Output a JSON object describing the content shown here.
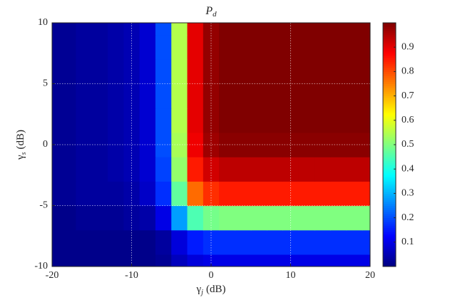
{
  "chart_data": {
    "type": "contourf",
    "title": {
      "base": "P",
      "sub": "d"
    },
    "xlabel": {
      "symbol": "γ",
      "sub": "j",
      "unit": "(dB)"
    },
    "ylabel": {
      "symbol": "γ",
      "sub": "s",
      "unit": "(dB)"
    },
    "x": [
      -20,
      -18,
      -16,
      -14,
      -12,
      -10,
      -8,
      -6,
      -4,
      -2,
      0,
      2,
      4,
      6,
      8,
      10,
      12,
      14,
      16,
      18,
      20
    ],
    "y": [
      -10,
      -8,
      -6,
      -4,
      -2,
      0,
      2,
      4,
      6,
      8,
      10
    ],
    "z": [
      [
        0.01,
        0.01,
        0.01,
        0.01,
        0.01,
        0.01,
        0.01,
        0.02,
        0.06,
        0.09,
        0.1,
        0.1,
        0.1,
        0.1,
        0.1,
        0.1,
        0.1,
        0.1,
        0.1,
        0.1,
        0.1
      ],
      [
        0.01,
        0.01,
        0.01,
        0.01,
        0.01,
        0.01,
        0.01,
        0.03,
        0.09,
        0.15,
        0.17,
        0.17,
        0.17,
        0.17,
        0.17,
        0.17,
        0.17,
        0.17,
        0.17,
        0.17,
        0.17
      ],
      [
        0.01,
        0.01,
        0.02,
        0.02,
        0.02,
        0.03,
        0.04,
        0.1,
        0.28,
        0.45,
        0.49,
        0.5,
        0.5,
        0.5,
        0.5,
        0.5,
        0.5,
        0.5,
        0.5,
        0.5,
        0.5
      ],
      [
        0.02,
        0.02,
        0.03,
        0.03,
        0.03,
        0.04,
        0.07,
        0.17,
        0.47,
        0.77,
        0.83,
        0.85,
        0.85,
        0.85,
        0.85,
        0.85,
        0.85,
        0.85,
        0.85,
        0.85,
        0.85
      ],
      [
        0.02,
        0.02,
        0.03,
        0.03,
        0.04,
        0.05,
        0.08,
        0.19,
        0.52,
        0.85,
        0.92,
        0.94,
        0.94,
        0.94,
        0.94,
        0.94,
        0.94,
        0.94,
        0.94,
        0.94,
        0.94
      ],
      [
        0.02,
        0.02,
        0.03,
        0.03,
        0.04,
        0.05,
        0.08,
        0.2,
        0.54,
        0.89,
        0.97,
        0.99,
        0.99,
        0.99,
        0.99,
        0.99,
        0.99,
        0.99,
        0.99,
        0.99,
        0.99
      ],
      [
        0.02,
        0.02,
        0.03,
        0.03,
        0.04,
        0.05,
        0.08,
        0.2,
        0.55,
        0.9,
        0.98,
        1,
        1,
        1,
        1,
        1,
        1,
        1,
        1,
        1,
        1
      ],
      [
        0.02,
        0.02,
        0.03,
        0.03,
        0.04,
        0.05,
        0.08,
        0.2,
        0.55,
        0.9,
        0.98,
        1,
        1,
        1,
        1,
        1,
        1,
        1,
        1,
        1,
        1
      ],
      [
        0.02,
        0.02,
        0.03,
        0.03,
        0.04,
        0.05,
        0.08,
        0.2,
        0.55,
        0.9,
        0.98,
        1,
        1,
        1,
        1,
        1,
        1,
        1,
        1,
        1,
        1
      ],
      [
        0.02,
        0.02,
        0.03,
        0.03,
        0.04,
        0.05,
        0.08,
        0.2,
        0.55,
        0.9,
        0.98,
        1,
        1,
        1,
        1,
        1,
        1,
        1,
        1,
        1,
        1
      ],
      [
        0.02,
        0.02,
        0.03,
        0.03,
        0.04,
        0.05,
        0.08,
        0.2,
        0.55,
        0.9,
        0.98,
        1,
        1,
        1,
        1,
        1,
        1,
        1,
        1,
        1,
        1
      ]
    ],
    "xlim": [
      -20,
      20
    ],
    "ylim": [
      -10,
      10
    ],
    "xticks": [
      -20,
      -10,
      0,
      10,
      20
    ],
    "yticks": [
      -10,
      -5,
      0,
      5,
      10
    ],
    "clim": [
      0,
      1
    ],
    "cticks": [
      0.1,
      0.2,
      0.3,
      0.4,
      0.5,
      0.6,
      0.7,
      0.8,
      0.9
    ],
    "colormap": "jet",
    "grid": true
  }
}
